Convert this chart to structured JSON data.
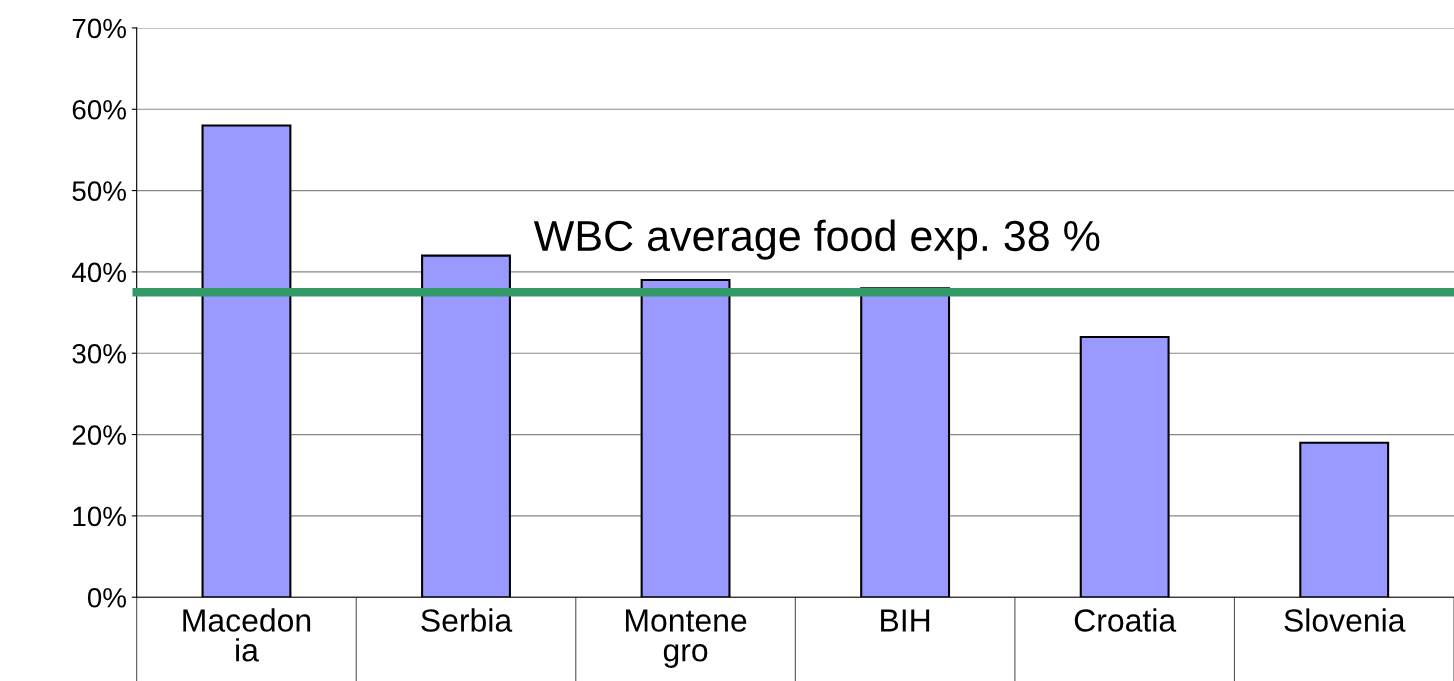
{
  "chart_data": {
    "type": "bar",
    "categories": [
      "Macedon\nia",
      "Serbia",
      "Montene\ngro",
      "BIH",
      "Croatia",
      "Slovenia"
    ],
    "values": [
      58,
      42,
      39,
      38,
      32,
      19
    ],
    "color": "#9999ff",
    "ylim": [
      0,
      70
    ],
    "yticks": [
      {
        "value": 0,
        "label": "0%"
      },
      {
        "value": 10,
        "label": "10%"
      },
      {
        "value": 20,
        "label": "20%"
      },
      {
        "value": 30,
        "label": "30%"
      },
      {
        "value": 40,
        "label": "40%"
      },
      {
        "value": 50,
        "label": "50%"
      },
      {
        "value": 60,
        "label": "60%"
      },
      {
        "value": 70,
        "label": "70%"
      }
    ],
    "grid": "y",
    "ref_lines": [
      {
        "axis": "y",
        "value": 37.5,
        "label": "WBC average food exp. 38 %",
        "color": "#339966"
      }
    ]
  }
}
